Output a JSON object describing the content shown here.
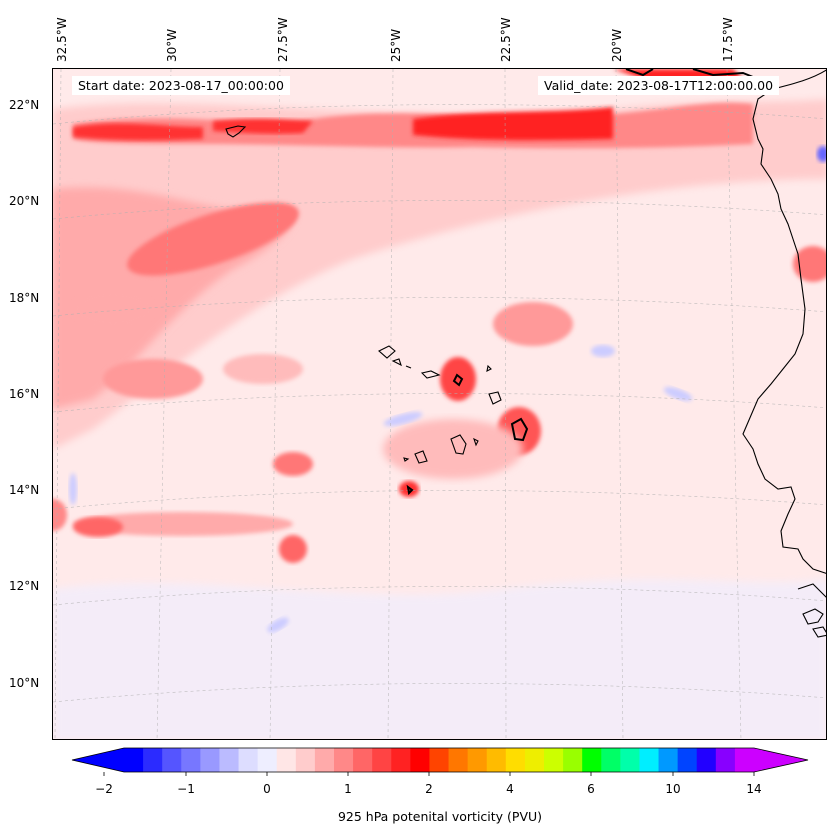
{
  "header": {
    "start_date": "Start date: 2023-08-17_00:00:00",
    "valid_date": "Valid_date: 2023-08-17T12:00:00.00"
  },
  "map": {
    "lon_labels": [
      "32.5°W",
      "30°W",
      "27.5°W",
      "25°W",
      "22.5°W",
      "20°W",
      "17.5°W"
    ],
    "lat_labels": [
      "22°N",
      "20°N",
      "18°N",
      "16°N",
      "14°N",
      "12°N",
      "10°N"
    ],
    "background_color": "#ffeaea",
    "coastline_color": "#000000"
  },
  "colorbar": {
    "label": "925 hPa potenital vorticity (PVU)",
    "tick_labels": [
      "−2",
      "−1",
      "0",
      "1",
      "2",
      "4",
      "6",
      "10",
      "14"
    ],
    "colors": [
      "#0000ff",
      "#2b2bff",
      "#5555ff",
      "#7777ff",
      "#9999ff",
      "#bbbbff",
      "#ddddff",
      "#eeeeff",
      "#ffe6e6",
      "#ffcccc",
      "#ffaaaa",
      "#ff8888",
      "#ff6666",
      "#ff4444",
      "#ff2222",
      "#ff0000",
      "#ff4400",
      "#ff7700",
      "#ff9900",
      "#ffbb00",
      "#ffdd00",
      "#eeee00",
      "#ccff00",
      "#99ff00",
      "#00ff00",
      "#00ff66",
      "#00ffaa",
      "#00eeff",
      "#0099ff",
      "#0044ff",
      "#2200ff",
      "#8800ff",
      "#cc00ff"
    ],
    "min_arrow_color": "#0000ff",
    "max_arrow_color": "#cc00ff"
  }
}
